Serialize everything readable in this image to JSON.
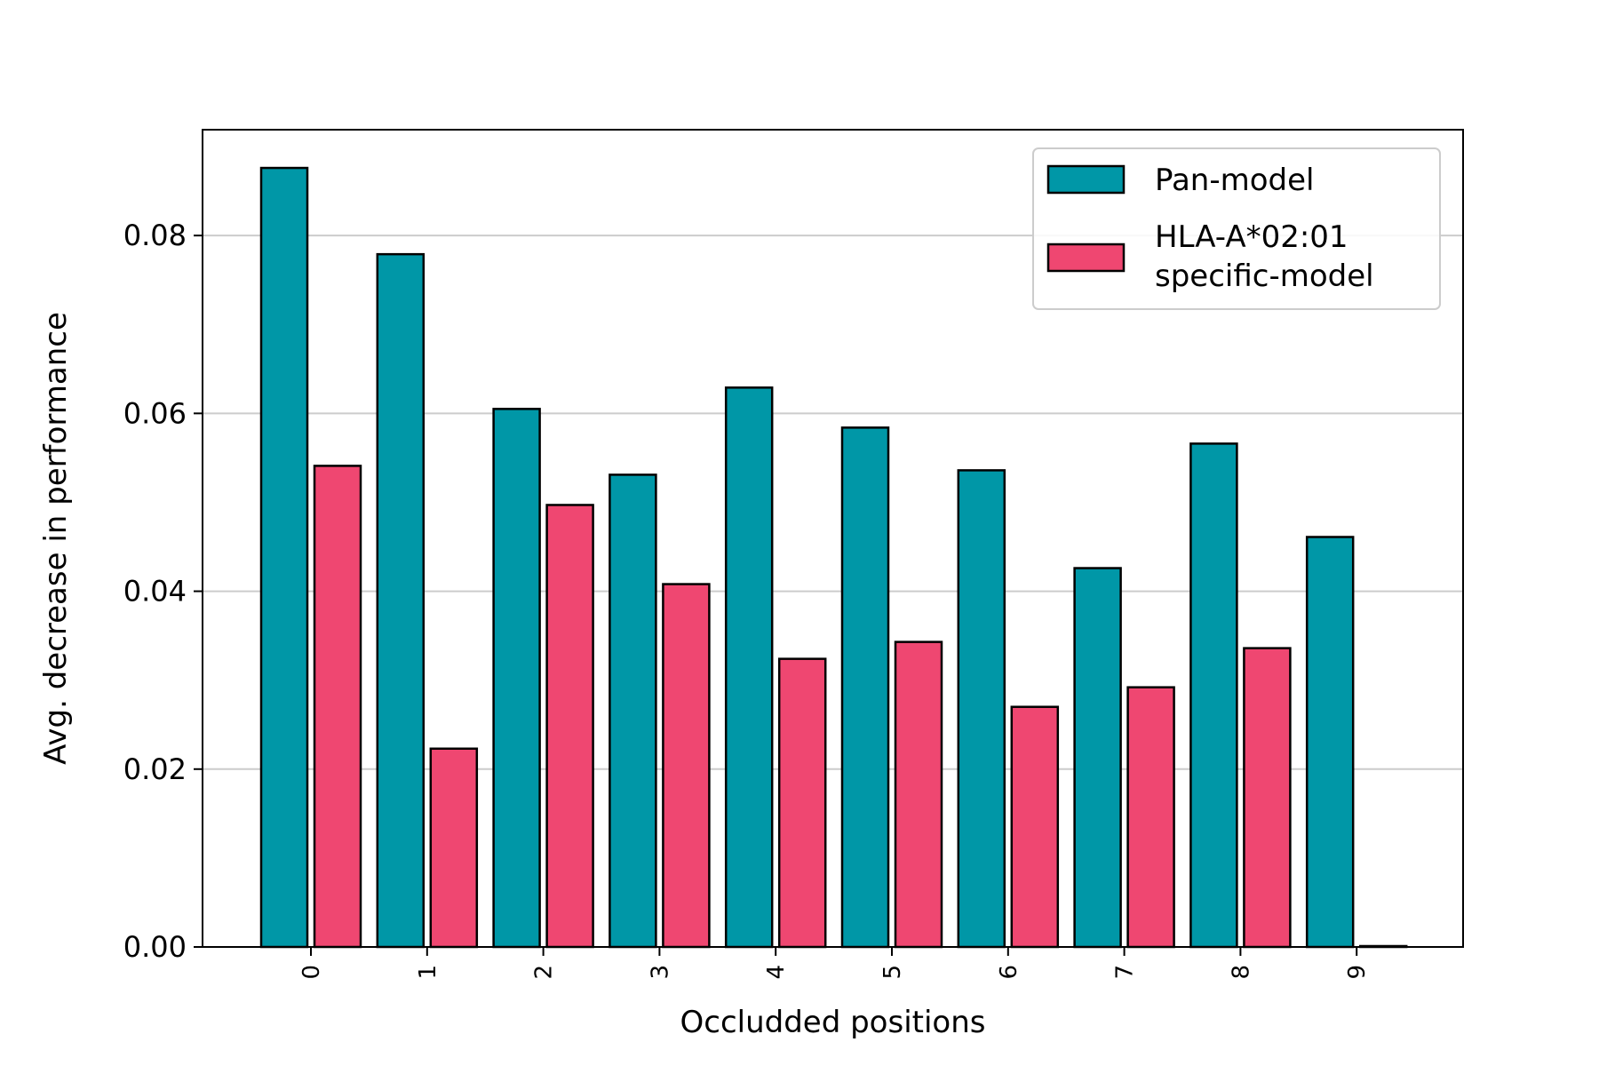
{
  "chart_data": {
    "type": "bar",
    "xlabel": "Occludded positions",
    "ylabel": "Avg. decrease in performance",
    "categories": [
      "0",
      "1",
      "2",
      "3",
      "4",
      "5",
      "6",
      "7",
      "8",
      "9"
    ],
    "series": [
      {
        "name": "Pan-model",
        "color": "#0097A7",
        "values": [
          0.0876,
          0.0779,
          0.0605,
          0.0531,
          0.0629,
          0.0584,
          0.0536,
          0.0426,
          0.0566,
          0.0461
        ]
      },
      {
        "name": "HLA-A*02:01\nspecific-model",
        "color": "#EF4771",
        "values": [
          0.0541,
          0.0223,
          0.0497,
          0.0408,
          0.0324,
          0.0343,
          0.027,
          0.0292,
          0.0336,
          0.0001
        ]
      }
    ],
    "ylim": [
      0,
      0.0919
    ],
    "yticks": [
      "0.00",
      "0.02",
      "0.04",
      "0.06",
      "0.08"
    ],
    "grid": "horizontal",
    "legend_position": "top-right",
    "edge_color": "#000000",
    "grid_color": "#cccccc"
  }
}
